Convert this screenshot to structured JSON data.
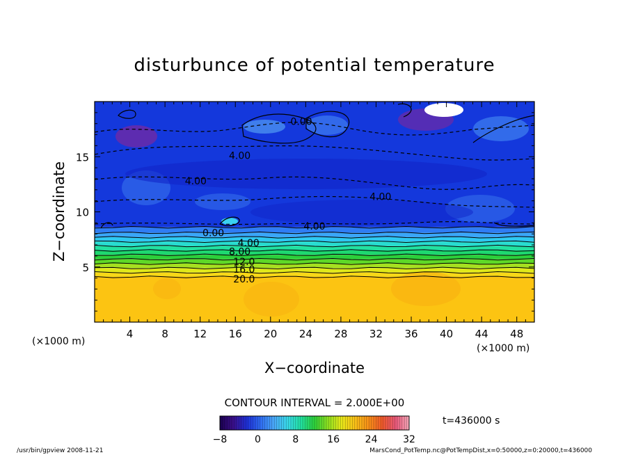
{
  "chart_data": {
    "type": "heatmap",
    "title": "disturbunce of potential temperature",
    "xlabel": "X−coordinate",
    "ylabel": "Z−coordinate",
    "x_unit_left": "(×1000 m)",
    "x_unit_right": "(×1000 m)",
    "xlim": [
      0,
      50
    ],
    "ylim": [
      0,
      20
    ],
    "x_ticks": [
      4,
      8,
      12,
      16,
      20,
      24,
      28,
      32,
      36,
      40,
      44,
      48
    ],
    "y_ticks": [
      5,
      10,
      15
    ],
    "contour_interval_text": "CONTOUR INTERVAL = 2.000E+00",
    "time_text": "t=436000 s",
    "colorbar": {
      "min": -8,
      "max": 32,
      "ticks": [
        -8,
        0,
        8,
        16,
        24,
        32
      ],
      "stops": [
        "#1a0050",
        "#3a0f8a",
        "#1e30d8",
        "#2f6cf2",
        "#4aa8f8",
        "#38d8e8",
        "#22e0a0",
        "#2ccf3a",
        "#8ee020",
        "#e8e81a",
        "#f8c018",
        "#f89018",
        "#f05a2a",
        "#e8587a",
        "#f4a8b8"
      ]
    },
    "layers": [
      {
        "z_top": 20,
        "z_bottom": 8.6,
        "value": -4,
        "color": "#1438dc"
      },
      {
        "z_top": 8.6,
        "z_bottom": 8.1,
        "value": 0,
        "color": "#2f7df4"
      },
      {
        "z_top": 8.1,
        "z_bottom": 7.7,
        "value": 2,
        "color": "#3aa6f8"
      },
      {
        "z_top": 7.7,
        "z_bottom": 7.3,
        "value": 4,
        "color": "#2ec8f0"
      },
      {
        "z_top": 7.3,
        "z_bottom": 6.9,
        "value": 6,
        "color": "#28dcd0"
      },
      {
        "z_top": 6.9,
        "z_bottom": 6.5,
        "value": 8,
        "color": "#22e0a0"
      },
      {
        "z_top": 6.5,
        "z_bottom": 6.1,
        "value": 10,
        "color": "#1ed870"
      },
      {
        "z_top": 6.1,
        "z_bottom": 5.7,
        "value": 12,
        "color": "#2ccf3a"
      },
      {
        "z_top": 5.7,
        "z_bottom": 5.3,
        "value": 14,
        "color": "#5ed828"
      },
      {
        "z_top": 5.3,
        "z_bottom": 4.9,
        "value": 16,
        "color": "#a6e020"
      },
      {
        "z_top": 4.9,
        "z_bottom": 4.5,
        "value": 18,
        "color": "#e0e81a"
      },
      {
        "z_top": 4.5,
        "z_bottom": 4.1,
        "value": 20,
        "color": "#f8d818"
      },
      {
        "z_top": 4.1,
        "z_bottom": 0,
        "value": 22,
        "color": "#fcc412"
      }
    ],
    "contour_labels": [
      {
        "x": 23.5,
        "z": 18.2,
        "text": "0.00"
      },
      {
        "x": 16.5,
        "z": 15.1,
        "text": "4.00"
      },
      {
        "x": 11.5,
        "z": 12.8,
        "text": "4.00"
      },
      {
        "x": 32.5,
        "z": 11.4,
        "text": "4.00"
      },
      {
        "x": 25.0,
        "z": 8.7,
        "text": "4.00"
      },
      {
        "x": 13.5,
        "z": 8.1,
        "text": "0.00"
      },
      {
        "x": 17.5,
        "z": 7.2,
        "text": "4.00"
      },
      {
        "x": 16.5,
        "z": 6.4,
        "text": "8.00"
      },
      {
        "x": 17.0,
        "z": 5.5,
        "text": "12.0"
      },
      {
        "x": 17.0,
        "z": 4.8,
        "text": "16.0"
      },
      {
        "x": 17.0,
        "z": 3.9,
        "text": "20.0"
      }
    ]
  },
  "footer": {
    "left": "/usr/bin/gpview   2008-11-21",
    "right": "MarsCond_PotTemp.nc@PotTempDist,x=0:50000,z=0:20000,t=436000"
  }
}
